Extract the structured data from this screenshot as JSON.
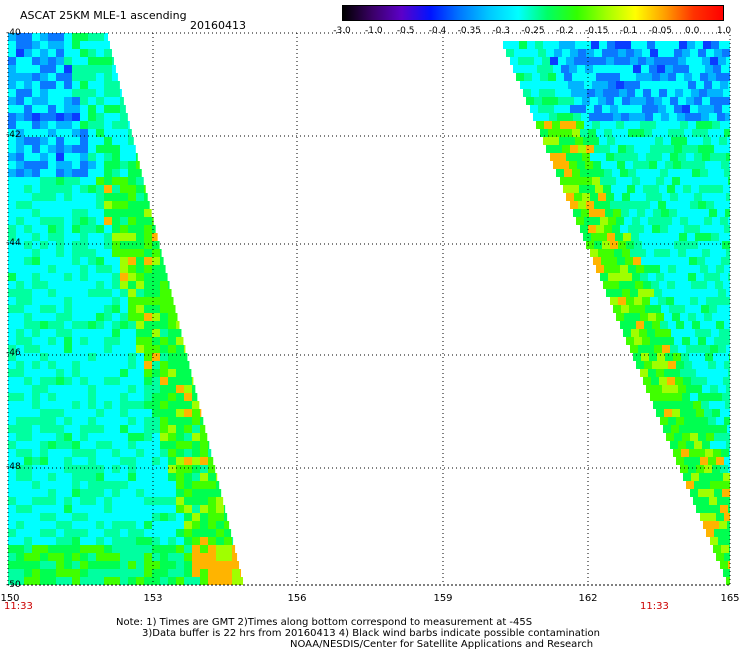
{
  "header": {
    "title": "ASCAT 25KM MLE-1 ascending",
    "date": "20160413"
  },
  "colorbar": {
    "labels": [
      "-3.0",
      "-1.0",
      "-0.5",
      "-0.4",
      "-0.35",
      "-0.3",
      "-0.25",
      "-0.2",
      "-0.15",
      "-0.1",
      "-0.05",
      "0.0",
      "1.0"
    ],
    "colors": [
      "#000000",
      "#3a0066",
      "#5c00c8",
      "#0014ff",
      "#0078ff",
      "#00c8ff",
      "#00ffff",
      "#00ff64",
      "#32ff00",
      "#a0ff00",
      "#ffff00",
      "#ffa000",
      "#ff3200",
      "#ff0000"
    ]
  },
  "axes": {
    "lat_labels": [
      "-40",
      "-42",
      "-44",
      "-46",
      "-48",
      "-50"
    ],
    "lon_labels": [
      "150",
      "153",
      "156",
      "159",
      "162",
      "165"
    ],
    "lat_range": [
      -50,
      -40
    ],
    "lon_range": [
      150,
      165
    ]
  },
  "times": {
    "left": "11:33",
    "right": "11:33"
  },
  "notes": {
    "line1": "Note: 1) Times are GMT 2)Times along bottom correspond to measurement at -45S",
    "line2": "3)Data buffer is 22 hrs from 20160413 4) Black wind barbs indicate possible contamination",
    "line3": "NOAA/NESDIS/Center for Satellite Applications and Research"
  }
}
